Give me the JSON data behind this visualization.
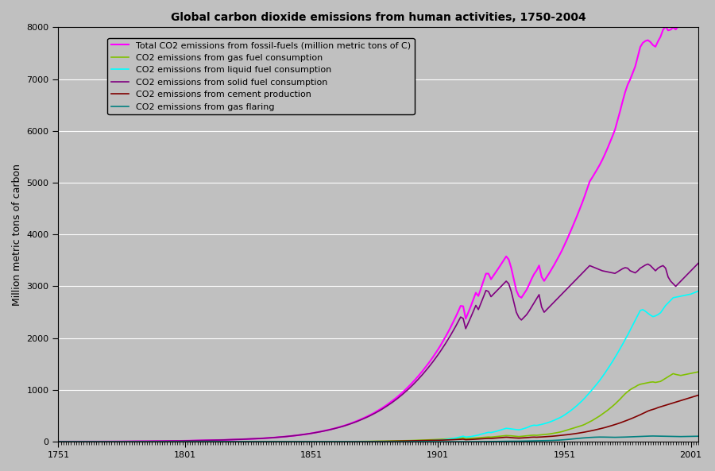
{
  "title": "Global carbon dioxide emissions from human activities, 1750-2004",
  "ylabel": "Million metric tons of carbon",
  "xlim": [
    1751,
    2004
  ],
  "ylim": [
    0,
    8000
  ],
  "yticks": [
    0,
    1000,
    2000,
    3000,
    4000,
    5000,
    6000,
    7000,
    8000
  ],
  "xticks": [
    1751,
    1801,
    1851,
    1901,
    1951,
    2001
  ],
  "background_color": "#c0c0c0",
  "plot_bg_color": "#c0c0c0",
  "legend_labels": [
    "Total CO2 emissions from fossil-fuels (million metric tons of C)",
    "CO2 emissions from gas fuel consumption",
    "CO2 emissions from liquid fuel consumption",
    "CO2 emissions from solid fuel consumption",
    "CO2 emissions from cement production",
    "CO2 emissions from gas flaring"
  ],
  "line_colors": [
    "#ff00ff",
    "#80c000",
    "#00ffff",
    "#800080",
    "#800000",
    "#008080"
  ],
  "line_widths": [
    1.5,
    1.2,
    1.2,
    1.2,
    1.2,
    1.2
  ]
}
